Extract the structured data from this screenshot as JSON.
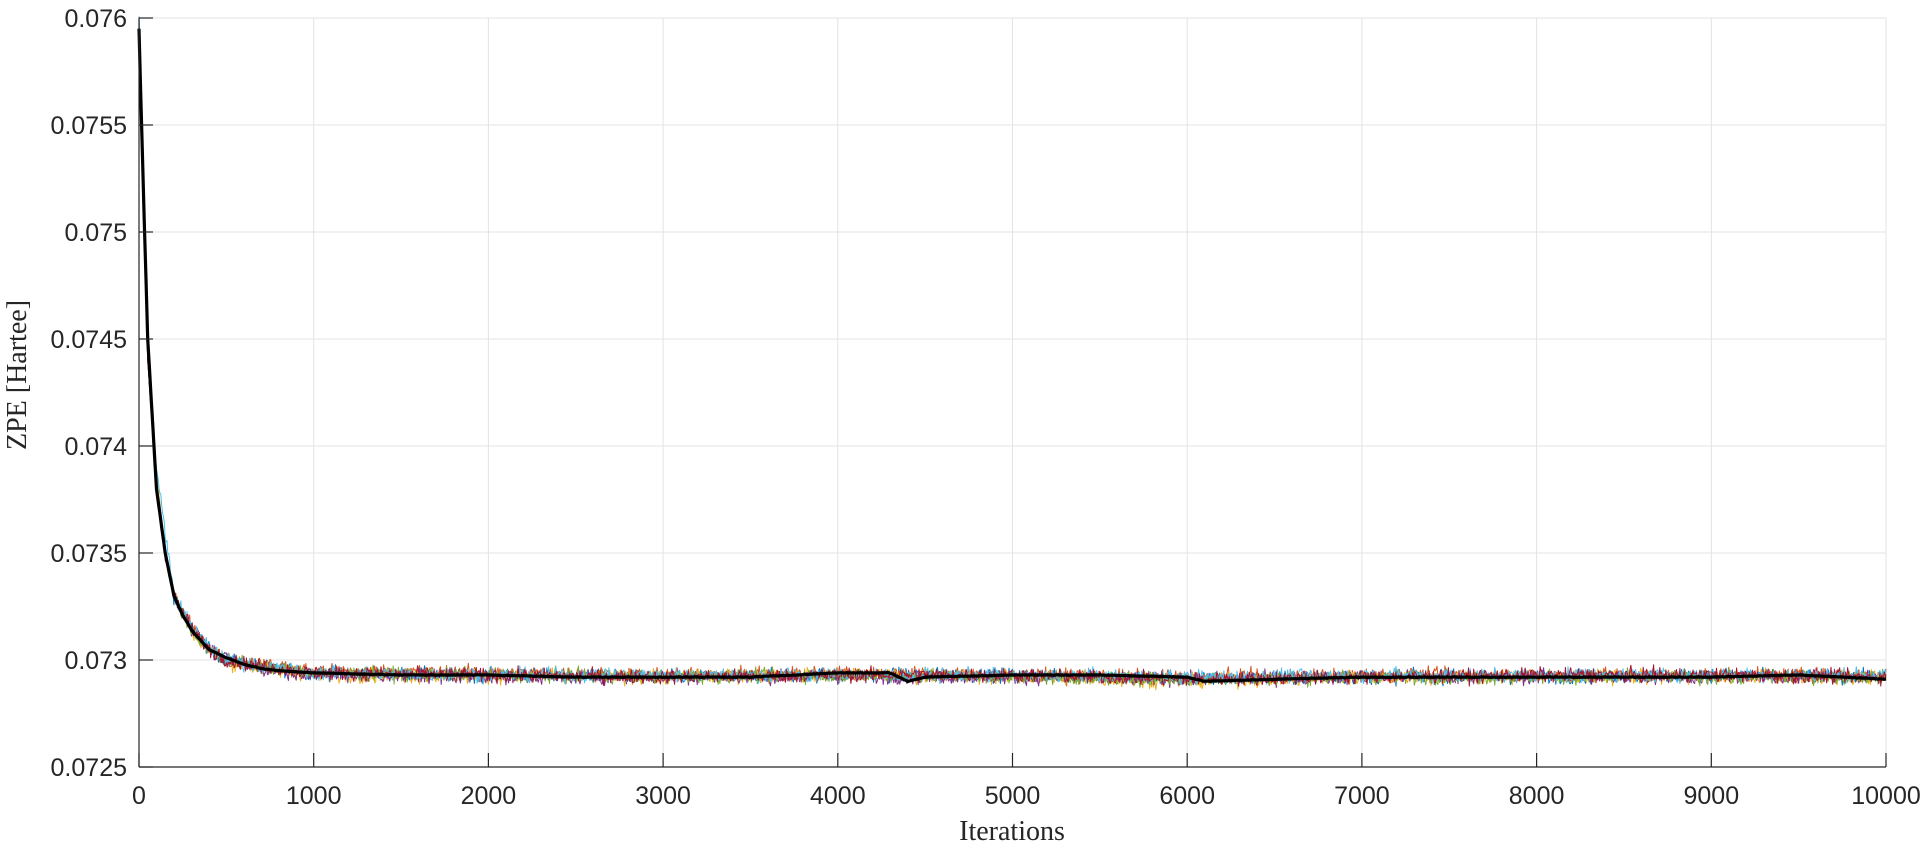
{
  "chart_data": {
    "type": "line",
    "title": "",
    "xlabel": "Iterations",
    "ylabel": "ZPE [Hartee]",
    "xlim": [
      0,
      10000
    ],
    "ylim": [
      0.0725,
      0.076
    ],
    "xticks": [
      0,
      1000,
      2000,
      3000,
      4000,
      5000,
      6000,
      7000,
      8000,
      9000,
      10000
    ],
    "xtick_labels": [
      "0",
      "1000",
      "2000",
      "3000",
      "4000",
      "5000",
      "6000",
      "7000",
      "8000",
      "9000",
      "10000"
    ],
    "yticks": [
      0.0725,
      0.073,
      0.0735,
      0.074,
      0.0745,
      0.075,
      0.0755,
      0.076
    ],
    "ytick_labels": [
      "0.0725",
      "0.073",
      "0.0735",
      "0.074",
      "0.0745",
      "0.075",
      "0.0755",
      "0.076"
    ],
    "grid": true,
    "legend": "none",
    "series": [
      {
        "color": "#0072BD",
        "values_desc": "noisy run",
        "x": [
          0,
          50,
          100,
          150,
          200,
          300,
          400,
          500,
          700,
          1000,
          2000,
          3000,
          4000,
          5000,
          6000,
          7000,
          8000,
          9000,
          10000
        ],
        "y": [
          0.076,
          0.0745,
          0.0738,
          0.0735,
          0.0733,
          0.07315,
          0.07305,
          0.073,
          0.07297,
          0.07294,
          0.07293,
          0.07292,
          0.07293,
          0.07293,
          0.07291,
          0.07292,
          0.07292,
          0.07293,
          0.07292
        ]
      },
      {
        "color": "#D95319",
        "x": [
          0,
          50,
          100,
          150,
          200,
          300,
          400,
          500,
          700,
          1000,
          2000,
          3000,
          4000,
          5000,
          6000,
          7000,
          8000,
          9000,
          10000
        ],
        "y": [
          0.0759,
          0.0744,
          0.0738,
          0.0735,
          0.0733,
          0.07315,
          0.07306,
          0.073,
          0.07298,
          0.07295,
          0.07294,
          0.07293,
          0.07294,
          0.07293,
          0.07292,
          0.07293,
          0.07293,
          0.07293,
          0.07293
        ]
      },
      {
        "color": "#EDB120",
        "x": [
          0,
          50,
          100,
          150,
          200,
          300,
          400,
          500,
          700,
          1000,
          2000,
          3000,
          4000,
          5000,
          6000,
          7000,
          8000,
          9000,
          10000
        ],
        "y": [
          0.0759,
          0.0745,
          0.0739,
          0.0735,
          0.0733,
          0.07314,
          0.07305,
          0.07299,
          0.07296,
          0.07293,
          0.07292,
          0.07292,
          0.07293,
          0.07292,
          0.0729,
          0.07292,
          0.07292,
          0.07292,
          0.07292
        ]
      },
      {
        "color": "#7E2F8E",
        "x": [
          0,
          50,
          100,
          150,
          200,
          300,
          400,
          500,
          700,
          1000,
          2000,
          3000,
          4000,
          5000,
          6000,
          7000,
          8000,
          9000,
          10000
        ],
        "y": [
          0.0759,
          0.0744,
          0.0738,
          0.0735,
          0.0733,
          0.07315,
          0.07305,
          0.073,
          0.07296,
          0.07293,
          0.07292,
          0.07292,
          0.07292,
          0.07292,
          0.07291,
          0.07292,
          0.07292,
          0.07292,
          0.07292
        ]
      },
      {
        "color": "#77AC30",
        "x": [
          0,
          50,
          100,
          150,
          200,
          300,
          400,
          500,
          700,
          1000,
          2000,
          3000,
          4000,
          5000,
          6000,
          7000,
          8000,
          9000,
          10000
        ],
        "y": [
          0.0759,
          0.0744,
          0.0738,
          0.0735,
          0.0733,
          0.07314,
          0.07305,
          0.073,
          0.07297,
          0.07294,
          0.07293,
          0.07292,
          0.07293,
          0.07292,
          0.07291,
          0.07292,
          0.07292,
          0.07292,
          0.07292
        ]
      },
      {
        "color": "#4DBEEE",
        "x": [
          0,
          50,
          100,
          150,
          200,
          300,
          400,
          500,
          700,
          1000,
          2000,
          3000,
          4000,
          5000,
          6000,
          7000,
          8000,
          9000,
          10000
        ],
        "y": [
          0.076,
          0.0745,
          0.0739,
          0.0736,
          0.0733,
          0.07316,
          0.07306,
          0.073,
          0.07297,
          0.07294,
          0.07293,
          0.07293,
          0.07293,
          0.07293,
          0.07292,
          0.07293,
          0.07293,
          0.07293,
          0.07293
        ]
      },
      {
        "color": "#A2142F",
        "x": [
          0,
          50,
          100,
          150,
          200,
          300,
          400,
          500,
          700,
          1000,
          2000,
          3000,
          4000,
          5000,
          6000,
          7000,
          8000,
          9000,
          10000
        ],
        "y": [
          0.0759,
          0.0744,
          0.0738,
          0.0735,
          0.0733,
          0.07315,
          0.07305,
          0.073,
          0.07297,
          0.07294,
          0.07293,
          0.07292,
          0.07293,
          0.07293,
          0.07291,
          0.07292,
          0.07293,
          0.07293,
          0.07292
        ]
      },
      {
        "color": "#000000",
        "values_desc": "mean",
        "x": [
          0,
          25,
          50,
          100,
          150,
          200,
          250,
          300,
          400,
          500,
          600,
          700,
          800,
          1000,
          1500,
          2000,
          2500,
          3000,
          3500,
          4000,
          4300,
          4400,
          4500,
          5000,
          5500,
          6000,
          6100,
          6500,
          7000,
          7500,
          8000,
          8500,
          9000,
          9500,
          10000
        ],
        "y": [
          0.07595,
          0.0752,
          0.0745,
          0.0738,
          0.0735,
          0.0733,
          0.07321,
          0.07314,
          0.07305,
          0.07301,
          0.07298,
          0.07296,
          0.07295,
          0.07294,
          0.07293,
          0.07293,
          0.07292,
          0.07292,
          0.07292,
          0.07294,
          0.07294,
          0.0729,
          0.07292,
          0.07293,
          0.07293,
          0.07292,
          0.0729,
          0.07291,
          0.07292,
          0.07292,
          0.07292,
          0.07292,
          0.07292,
          0.07293,
          0.07291
        ]
      }
    ]
  }
}
